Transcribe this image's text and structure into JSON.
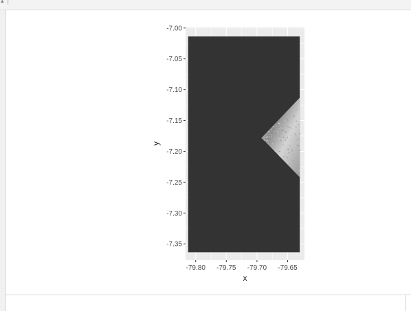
{
  "chart_data": {
    "type": "heatmap",
    "title": "",
    "xlabel": "x",
    "ylabel": "y",
    "xlim": [
      -79.8165,
      -79.6225
    ],
    "ylim": [
      -7.3765,
      -6.998
    ],
    "x_ticks": [
      -79.8,
      -79.75,
      -79.7,
      -79.65
    ],
    "x_tick_labels": [
      "-79.80",
      "-79.75",
      "-79.70",
      "-79.65"
    ],
    "y_ticks": [
      -7.0,
      -7.05,
      -7.1,
      -7.15,
      -7.2,
      -7.25,
      -7.3,
      -7.35
    ],
    "y_tick_labels": [
      "-7.00",
      "-7.05",
      "-7.10",
      "-7.15",
      "-7.20",
      "-7.25",
      "-7.30",
      "-7.35"
    ],
    "grid": true,
    "raster_extent": {
      "xmin": -79.8123,
      "xmax": -79.6302,
      "ymin": -7.3636,
      "ymax": -7.0137
    },
    "background_value_color": "#333333",
    "data_region": {
      "shape": "triangle",
      "vertices": [
        [
          -79.6302,
          -7.113
        ],
        [
          -79.6925,
          -7.178
        ],
        [
          -79.6302,
          -7.242
        ]
      ],
      "color_range": [
        "#8c8c8c",
        "#d4d4d4"
      ]
    },
    "panel_background": "#ebebeb",
    "grid_color": "#ffffff"
  }
}
